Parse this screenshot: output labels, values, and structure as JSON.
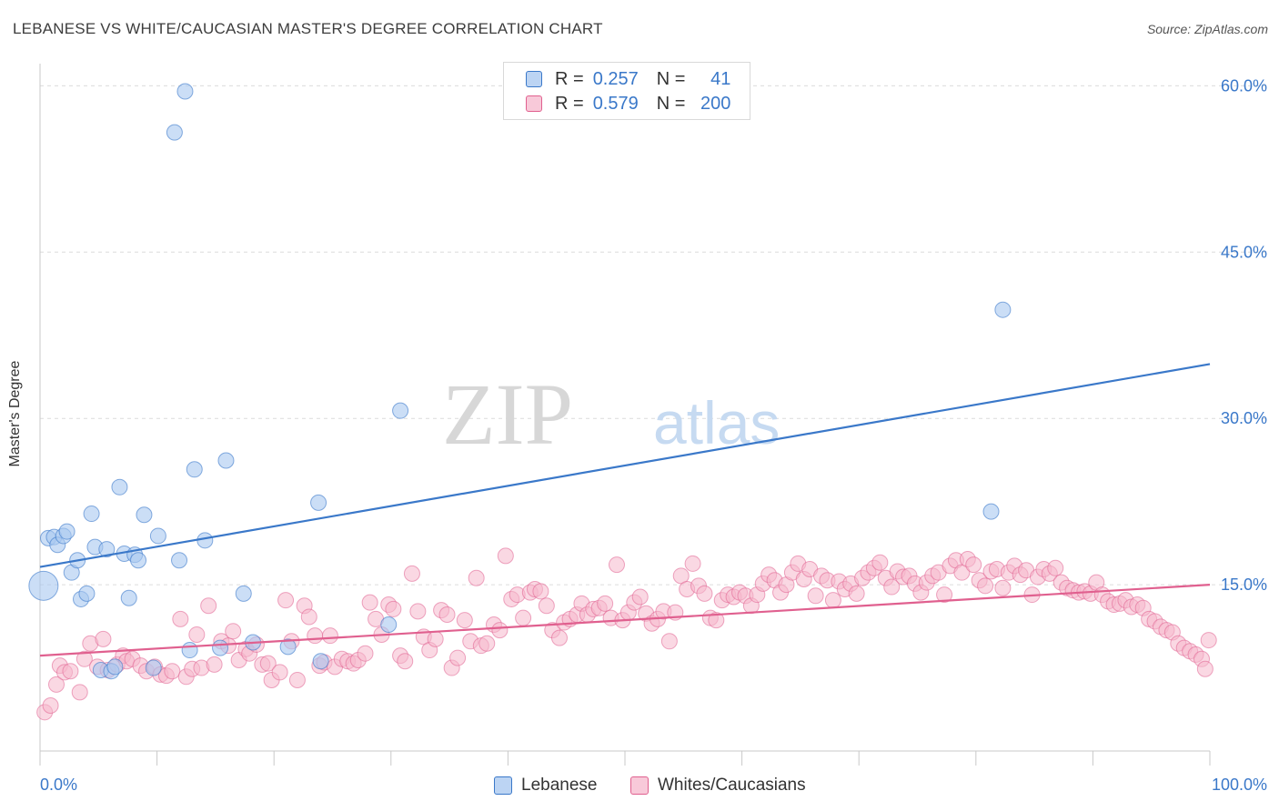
{
  "title": "LEBANESE VS WHITE/CAUCASIAN MASTER'S DEGREE CORRELATION CHART",
  "source": "Source: ZipAtlas.com",
  "watermark": {
    "zip": "ZIP",
    "atlas": "atlas"
  },
  "legend": {
    "rows": [
      {
        "r_label": "R =",
        "r_value": "0.257",
        "n_label": "N =",
        "n_value": "41"
      },
      {
        "r_label": "R =",
        "r_value": "0.579",
        "n_label": "N =",
        "n_value": "200"
      }
    ]
  },
  "bottom_legend": {
    "lebanese": "Lebanese",
    "whites": "Whites/Caucasians"
  },
  "colors": {
    "blue": "#3a78c9",
    "blue_fill": "#a9c8f0",
    "pink": "#e0608f",
    "pink_fill": "#f5b8cc",
    "grid": "#dcdcdc",
    "tick_label": "#3a78c9"
  },
  "chart_data": {
    "type": "scatter",
    "xlabel": "",
    "ylabel": "Master's Degree",
    "xlim": [
      0,
      100
    ],
    "ylim": [
      0,
      62
    ],
    "x_tick_labels": [
      "0.0%",
      "100.0%"
    ],
    "y_ticks": [
      15,
      30,
      45,
      60
    ],
    "y_tick_labels": [
      "15.0%",
      "30.0%",
      "45.0%",
      "60.0%"
    ],
    "grid": true,
    "series": [
      {
        "name": "Lebanese",
        "color": "#3a78c9",
        "trend": {
          "x": [
            0,
            100
          ],
          "y": [
            16.6,
            34.9
          ]
        },
        "points": [
          [
            0.3,
            14.9
          ],
          [
            0.7,
            19.2
          ],
          [
            1.2,
            19.3
          ],
          [
            1.5,
            18.6
          ],
          [
            2.0,
            19.4
          ],
          [
            2.3,
            19.8
          ],
          [
            2.7,
            16.1
          ],
          [
            3.2,
            17.2
          ],
          [
            3.5,
            13.7
          ],
          [
            4.0,
            14.2
          ],
          [
            4.4,
            21.4
          ],
          [
            4.7,
            18.4
          ],
          [
            5.2,
            7.3
          ],
          [
            5.7,
            18.2
          ],
          [
            6.1,
            7.2
          ],
          [
            6.4,
            7.6
          ],
          [
            6.8,
            23.8
          ],
          [
            7.2,
            17.8
          ],
          [
            7.6,
            13.8
          ],
          [
            8.1,
            17.7
          ],
          [
            8.4,
            17.2
          ],
          [
            8.9,
            21.3
          ],
          [
            9.7,
            7.5
          ],
          [
            10.1,
            19.4
          ],
          [
            11.5,
            55.8
          ],
          [
            11.9,
            17.2
          ],
          [
            12.4,
            59.5
          ],
          [
            12.8,
            9.1
          ],
          [
            13.2,
            25.4
          ],
          [
            14.1,
            19.0
          ],
          [
            15.4,
            9.3
          ],
          [
            15.9,
            26.2
          ],
          [
            17.4,
            14.2
          ],
          [
            18.2,
            9.8
          ],
          [
            21.2,
            9.4
          ],
          [
            23.8,
            22.4
          ],
          [
            24.0,
            8.1
          ],
          [
            29.8,
            11.4
          ],
          [
            30.8,
            30.7
          ],
          [
            81.3,
            21.6
          ],
          [
            82.3,
            39.8
          ]
        ]
      },
      {
        "name": "Whites/Caucasians",
        "color": "#e0608f",
        "trend": {
          "x": [
            0,
            100
          ],
          "y": [
            8.6,
            15.0
          ]
        },
        "points": [
          [
            0.4,
            3.5
          ],
          [
            0.9,
            4.1
          ],
          [
            1.4,
            6.0
          ],
          [
            1.7,
            7.7
          ],
          [
            2.1,
            7.1
          ],
          [
            2.6,
            7.2
          ],
          [
            3.4,
            5.3
          ],
          [
            3.8,
            8.3
          ],
          [
            4.3,
            9.7
          ],
          [
            4.9,
            7.6
          ],
          [
            5.4,
            10.1
          ],
          [
            5.8,
            7.3
          ],
          [
            6.6,
            7.8
          ],
          [
            7.1,
            8.6
          ],
          [
            7.4,
            8.1
          ],
          [
            7.9,
            8.3
          ],
          [
            8.6,
            7.7
          ],
          [
            9.1,
            7.2
          ],
          [
            9.8,
            7.6
          ],
          [
            10.3,
            6.9
          ],
          [
            10.8,
            6.8
          ],
          [
            11.3,
            7.2
          ],
          [
            12.0,
            11.9
          ],
          [
            12.5,
            6.7
          ],
          [
            13.0,
            7.4
          ],
          [
            13.4,
            10.5
          ],
          [
            13.8,
            7.5
          ],
          [
            14.4,
            13.1
          ],
          [
            14.9,
            7.8
          ],
          [
            15.5,
            9.9
          ],
          [
            16.1,
            9.5
          ],
          [
            16.5,
            10.8
          ],
          [
            17.0,
            8.2
          ],
          [
            17.6,
            9.2
          ],
          [
            17.9,
            8.8
          ],
          [
            18.5,
            9.6
          ],
          [
            19.0,
            7.8
          ],
          [
            19.5,
            7.9
          ],
          [
            19.8,
            6.4
          ],
          [
            20.5,
            7.1
          ],
          [
            21.0,
            13.6
          ],
          [
            21.5,
            9.9
          ],
          [
            22.0,
            6.4
          ],
          [
            22.6,
            13.1
          ],
          [
            23.0,
            12.1
          ],
          [
            23.5,
            10.4
          ],
          [
            23.9,
            7.7
          ],
          [
            24.3,
            8.0
          ],
          [
            24.8,
            10.4
          ],
          [
            25.2,
            7.6
          ],
          [
            25.8,
            8.3
          ],
          [
            26.3,
            8.1
          ],
          [
            26.8,
            7.9
          ],
          [
            27.2,
            8.2
          ],
          [
            27.8,
            8.8
          ],
          [
            28.2,
            13.4
          ],
          [
            28.7,
            11.9
          ],
          [
            29.2,
            10.5
          ],
          [
            29.8,
            13.2
          ],
          [
            30.2,
            12.8
          ],
          [
            30.8,
            8.6
          ],
          [
            31.2,
            8.1
          ],
          [
            31.8,
            16.0
          ],
          [
            32.3,
            12.6
          ],
          [
            32.8,
            10.3
          ],
          [
            33.3,
            9.1
          ],
          [
            33.8,
            10.1
          ],
          [
            34.3,
            12.7
          ],
          [
            34.8,
            12.3
          ],
          [
            35.2,
            7.5
          ],
          [
            35.7,
            8.4
          ],
          [
            36.3,
            11.8
          ],
          [
            36.8,
            9.9
          ],
          [
            37.3,
            15.6
          ],
          [
            37.7,
            9.5
          ],
          [
            38.2,
            9.7
          ],
          [
            38.8,
            11.4
          ],
          [
            39.3,
            10.9
          ],
          [
            39.8,
            17.6
          ],
          [
            40.3,
            13.7
          ],
          [
            40.8,
            14.1
          ],
          [
            41.3,
            12.0
          ],
          [
            41.9,
            14.3
          ],
          [
            42.3,
            14.6
          ],
          [
            42.8,
            14.4
          ],
          [
            43.3,
            13.1
          ],
          [
            43.8,
            10.9
          ],
          [
            44.4,
            10.2
          ],
          [
            44.8,
            11.6
          ],
          [
            45.3,
            11.9
          ],
          [
            45.9,
            12.3
          ],
          [
            46.3,
            13.3
          ],
          [
            46.8,
            12.3
          ],
          [
            47.3,
            12.8
          ],
          [
            47.8,
            12.9
          ],
          [
            48.3,
            13.3
          ],
          [
            48.8,
            12.0
          ],
          [
            49.3,
            16.8
          ],
          [
            49.8,
            11.8
          ],
          [
            50.3,
            12.5
          ],
          [
            50.8,
            13.4
          ],
          [
            51.3,
            13.9
          ],
          [
            51.8,
            12.4
          ],
          [
            52.3,
            11.5
          ],
          [
            52.8,
            11.9
          ],
          [
            53.3,
            12.6
          ],
          [
            53.8,
            9.9
          ],
          [
            54.3,
            12.5
          ],
          [
            54.8,
            15.8
          ],
          [
            55.3,
            14.6
          ],
          [
            55.8,
            16.9
          ],
          [
            56.3,
            14.9
          ],
          [
            56.8,
            14.2
          ],
          [
            57.3,
            12.0
          ],
          [
            57.8,
            11.8
          ],
          [
            58.3,
            13.6
          ],
          [
            58.8,
            14.1
          ],
          [
            59.3,
            13.9
          ],
          [
            59.8,
            14.3
          ],
          [
            60.3,
            14.0
          ],
          [
            60.8,
            13.1
          ],
          [
            61.3,
            14.1
          ],
          [
            61.8,
            15.1
          ],
          [
            62.3,
            15.9
          ],
          [
            62.8,
            15.4
          ],
          [
            63.3,
            14.3
          ],
          [
            63.8,
            15.0
          ],
          [
            64.3,
            16.1
          ],
          [
            64.8,
            16.9
          ],
          [
            65.3,
            15.5
          ],
          [
            65.8,
            16.4
          ],
          [
            66.3,
            14.0
          ],
          [
            66.8,
            15.8
          ],
          [
            67.3,
            15.4
          ],
          [
            67.8,
            13.6
          ],
          [
            68.3,
            15.3
          ],
          [
            68.8,
            14.6
          ],
          [
            69.3,
            15.1
          ],
          [
            69.8,
            14.2
          ],
          [
            70.3,
            15.6
          ],
          [
            70.8,
            16.1
          ],
          [
            71.3,
            16.5
          ],
          [
            71.8,
            17.0
          ],
          [
            72.3,
            15.6
          ],
          [
            72.8,
            14.8
          ],
          [
            73.3,
            16.2
          ],
          [
            73.8,
            15.7
          ],
          [
            74.3,
            15.8
          ],
          [
            74.8,
            15.1
          ],
          [
            75.3,
            14.3
          ],
          [
            75.8,
            15.2
          ],
          [
            76.3,
            15.8
          ],
          [
            76.8,
            16.1
          ],
          [
            77.3,
            14.1
          ],
          [
            77.8,
            16.7
          ],
          [
            78.3,
            17.2
          ],
          [
            78.8,
            16.1
          ],
          [
            79.3,
            17.3
          ],
          [
            79.8,
            16.8
          ],
          [
            80.3,
            15.4
          ],
          [
            80.8,
            14.9
          ],
          [
            81.3,
            16.2
          ],
          [
            81.8,
            16.4
          ],
          [
            82.3,
            14.7
          ],
          [
            82.8,
            16.1
          ],
          [
            83.3,
            16.7
          ],
          [
            83.8,
            15.9
          ],
          [
            84.3,
            16.3
          ],
          [
            84.8,
            14.1
          ],
          [
            85.3,
            15.7
          ],
          [
            85.8,
            16.4
          ],
          [
            86.3,
            16.0
          ],
          [
            86.8,
            16.5
          ],
          [
            87.3,
            15.2
          ],
          [
            87.8,
            14.7
          ],
          [
            88.3,
            14.5
          ],
          [
            88.8,
            14.3
          ],
          [
            89.3,
            14.4
          ],
          [
            89.8,
            14.2
          ],
          [
            90.3,
            15.2
          ],
          [
            90.8,
            14.1
          ],
          [
            91.3,
            13.5
          ],
          [
            91.8,
            13.2
          ],
          [
            92.3,
            13.3
          ],
          [
            92.8,
            13.6
          ],
          [
            93.3,
            13.0
          ],
          [
            93.8,
            13.2
          ],
          [
            94.3,
            12.9
          ],
          [
            94.8,
            11.9
          ],
          [
            95.3,
            11.7
          ],
          [
            95.8,
            11.2
          ],
          [
            96.3,
            10.9
          ],
          [
            96.8,
            10.7
          ],
          [
            97.3,
            9.7
          ],
          [
            97.8,
            9.3
          ],
          [
            98.3,
            9.0
          ],
          [
            98.8,
            8.7
          ],
          [
            99.3,
            8.3
          ],
          [
            99.6,
            7.4
          ],
          [
            99.9,
            10.0
          ]
        ]
      }
    ]
  }
}
